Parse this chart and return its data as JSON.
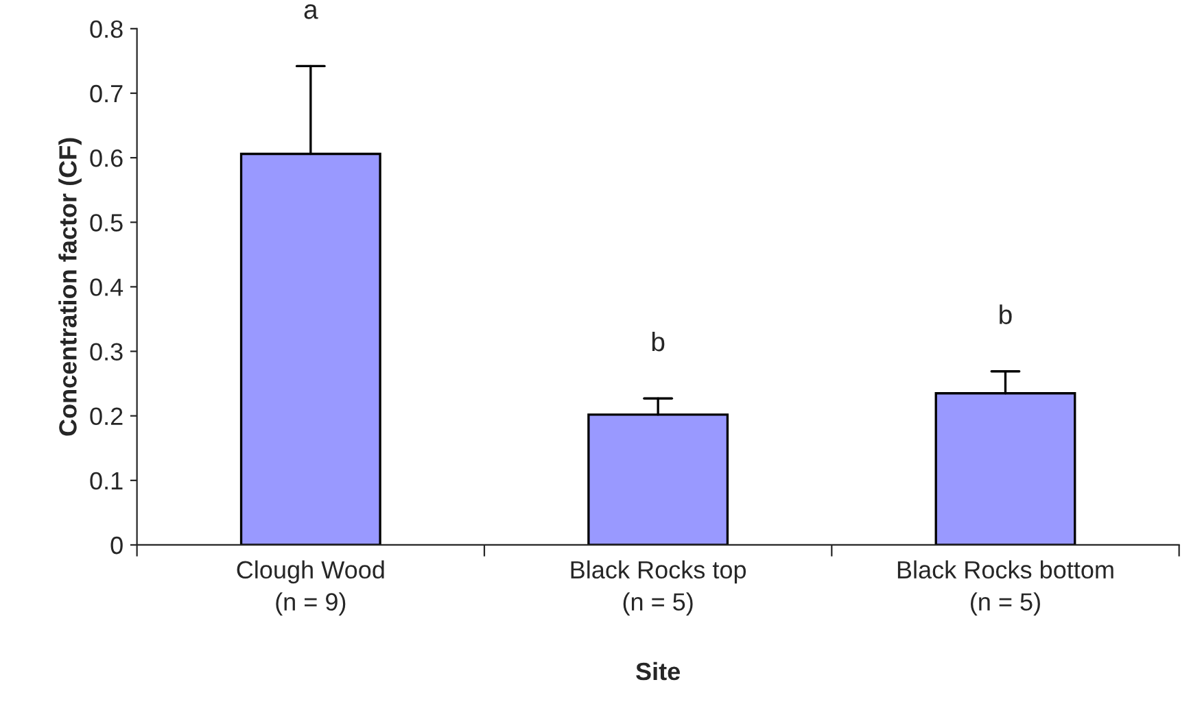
{
  "chart_data": {
    "type": "bar",
    "xlabel": "Site",
    "ylabel": "Concentration factor (CF)",
    "categories": [
      "Clough Wood\n(n = 9)",
      "Black Rocks top\n(n = 5)",
      "Black Rocks bottom\n(n = 5)"
    ],
    "values": [
      0.606,
      0.202,
      0.235
    ],
    "color": "#9999ff",
    "errors": [
      [
        0.606,
        0.742
      ],
      [
        0.202,
        0.227
      ],
      [
        0.235,
        0.269
      ]
    ],
    "annotations": [
      "a",
      "b",
      "b"
    ],
    "ylim": [
      0,
      0.8
    ],
    "yticks": [
      0,
      0.1,
      0.2,
      0.3,
      0.4,
      0.5,
      0.6,
      0.7,
      0.8
    ],
    "grid": false,
    "legend": false
  }
}
